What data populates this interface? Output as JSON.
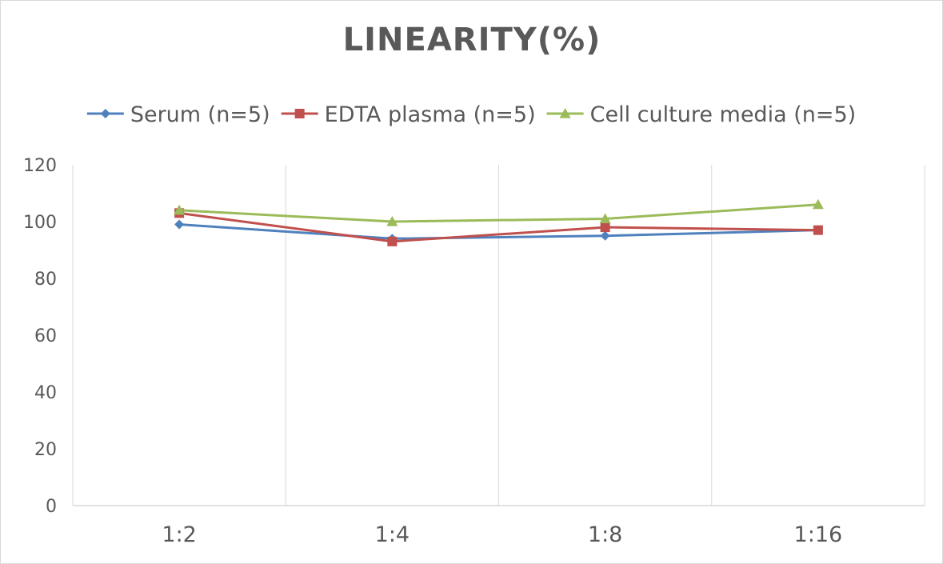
{
  "chart_data": {
    "type": "line",
    "title": "LINEARITY(%)",
    "xlabel": "",
    "ylabel": "",
    "categories": [
      "1:2",
      "1:4",
      "1:8",
      "1:16"
    ],
    "ylim": [
      0,
      120
    ],
    "yticks": [
      0,
      20,
      40,
      60,
      80,
      100,
      120
    ],
    "grid": "vertical",
    "legend": "top",
    "series": [
      {
        "name": "Serum (n=5)",
        "color": "#4f81bd",
        "marker": "diamond",
        "values": [
          99,
          94,
          95,
          97
        ]
      },
      {
        "name": "EDTA plasma (n=5)",
        "color": "#c0504d",
        "marker": "square",
        "values": [
          103,
          93,
          98,
          97
        ]
      },
      {
        "name": "Cell culture media (n=5)",
        "color": "#9bbb59",
        "marker": "triangle",
        "values": [
          104,
          100,
          101,
          106
        ]
      }
    ]
  }
}
